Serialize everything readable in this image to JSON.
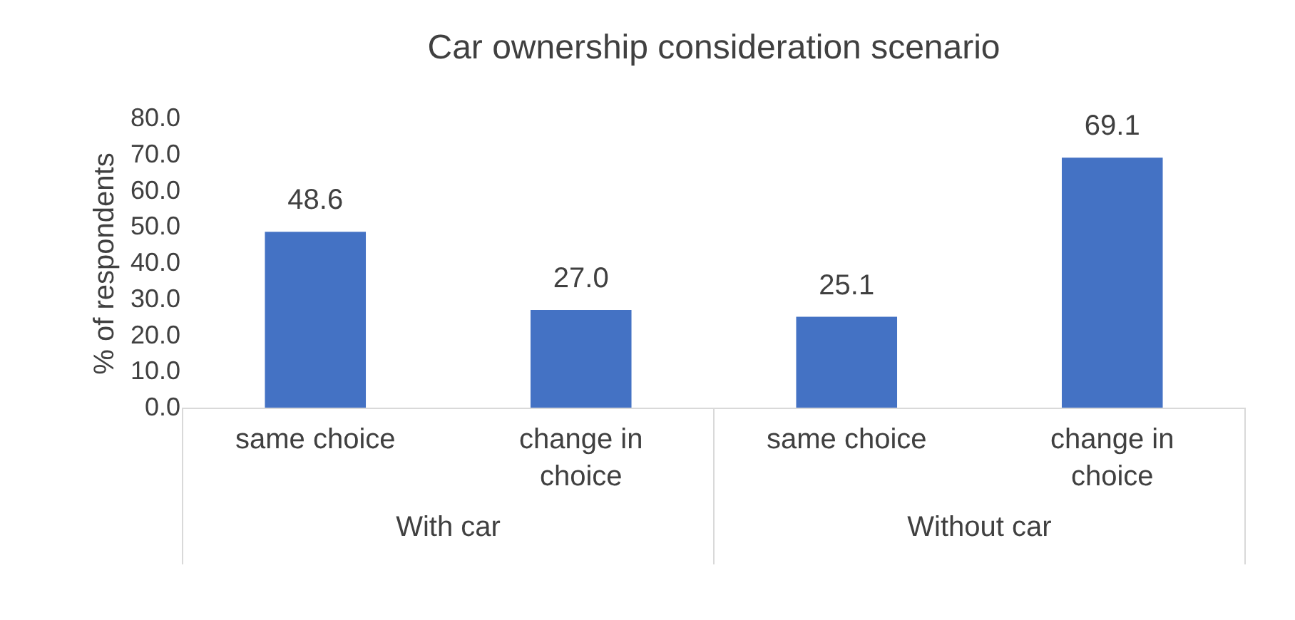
{
  "chart_data": {
    "type": "bar",
    "title": "Car ownership consideration scenario",
    "ylabel": "% of respondents",
    "categories": [
      "same choice",
      "change in choice",
      "same choice",
      "change in choice"
    ],
    "values": [
      48.6,
      27.0,
      25.1,
      69.1
    ],
    "value_labels": [
      "48.6",
      "27.0",
      "25.1",
      "69.1"
    ],
    "color": "#4472c4",
    "ylim": [
      0,
      80
    ],
    "yticks": [
      {
        "value": 0,
        "label": "0.0"
      },
      {
        "value": 10,
        "label": "10.0"
      },
      {
        "value": 20,
        "label": "20.0"
      },
      {
        "value": 30,
        "label": "30.0"
      },
      {
        "value": 40,
        "label": "40.0"
      },
      {
        "value": 50,
        "label": "50.0"
      },
      {
        "value": 60,
        "label": "60.0"
      },
      {
        "value": 70,
        "label": "70.0"
      },
      {
        "value": 80,
        "label": "80.0"
      }
    ],
    "annotations": [
      "With car",
      "Without car"
    ],
    "grid": false
  }
}
